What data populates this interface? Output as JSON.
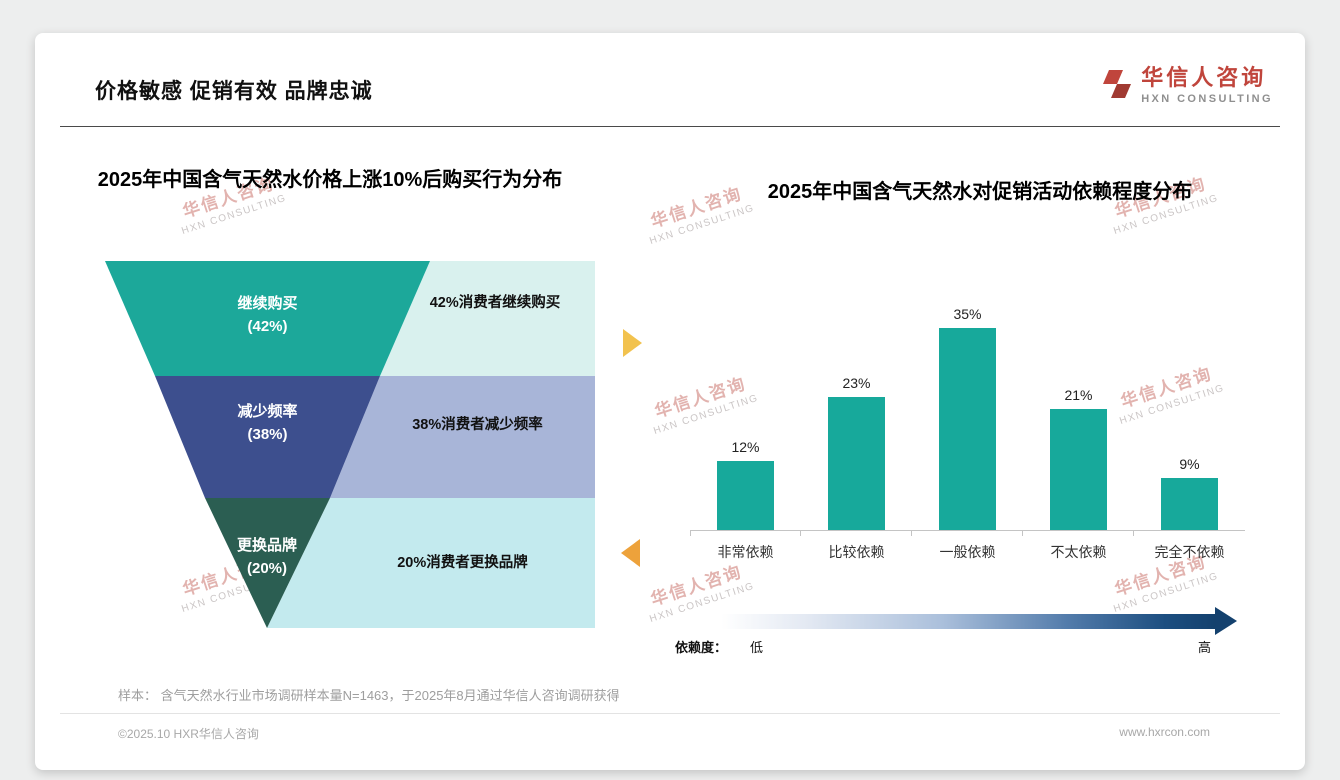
{
  "header": {
    "title": "价格敏感 促销有效 品牌忠诚"
  },
  "logo": {
    "name": "华信人咨询",
    "subtitle": "HXN CONSULTING",
    "color": "#c0453c"
  },
  "watermark": {
    "line1": "华信人咨询",
    "line2": "HXN CONSULTING"
  },
  "funnel": {
    "rows": [
      {
        "label": "继续购买",
        "pct": "(42%)",
        "desc": "42%消费者继续购买",
        "color": "#1ca89a",
        "panel_color": "#d9f1ee"
      },
      {
        "label": "减少频率",
        "pct": "(38%)",
        "desc": "38%消费者减少频率",
        "color": "#3d4f8e",
        "panel_color": "#a8b5d8"
      },
      {
        "label": "更换品牌",
        "pct": "(20%)",
        "desc": "20%消费者更换品牌",
        "color": "#2b5e52",
        "panel_color": "#c3eaee"
      }
    ]
  },
  "colors": {
    "bar": "#17a99b",
    "arrow_top": "#f2c24e",
    "arrow_bottom": "#eda23b",
    "gradient_dark": "#14416e",
    "logo_red": "#c0453c"
  },
  "chart_data": [
    {
      "type": "funnel",
      "title": "2025年中国含气天然水价格上涨10%后购买行为分布",
      "categories": [
        "继续购买",
        "减少频率",
        "更换品牌"
      ],
      "values": [
        42,
        38,
        20
      ],
      "unit": "%",
      "annotations": [
        "42%消费者继续购买",
        "38%消费者减少频率",
        "20%消费者更换品牌"
      ]
    },
    {
      "type": "bar",
      "title": "2025年中国含气天然水对促销活动依赖程度分布",
      "categories": [
        "非常依赖",
        "比较依赖",
        "一般依赖",
        "不太依赖",
        "完全不依赖"
      ],
      "values": [
        12,
        23,
        35,
        21,
        9
      ],
      "data_labels": [
        "12%",
        "23%",
        "35%",
        "21%",
        "9%"
      ],
      "ylim": [
        0,
        38
      ],
      "grid": false,
      "legend": "none",
      "dependency_axis": {
        "label": "依赖度：",
        "low": "低",
        "high": "高"
      }
    }
  ],
  "footnote": "样本： 含气天然水行业市场调研样本量N=1463，于2025年8月通过华信人咨询调研获得",
  "footer": {
    "left": "©2025.10 HXR华信人咨询",
    "right": "www.hxrcon.com"
  }
}
